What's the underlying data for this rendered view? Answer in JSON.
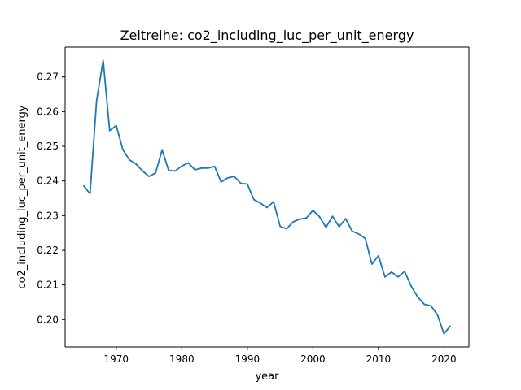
{
  "chart_data": {
    "type": "line",
    "title": "Zeitreihe: co2_including_luc_per_unit_energy",
    "xlabel": "year",
    "ylabel": "co2_including_luc_per_unit_energy",
    "xlim": [
      1962.2,
      2023.8
    ],
    "ylim": [
      0.1921,
      0.2786
    ],
    "grid": false,
    "line_color": "#1f77b4",
    "x_ticks": [
      1970,
      1980,
      1990,
      2000,
      2010,
      2020
    ],
    "x_tick_labels": [
      "1970",
      "1980",
      "1990",
      "2000",
      "2010",
      "2020"
    ],
    "y_ticks": [
      0.2,
      0.21,
      0.22,
      0.23,
      0.24,
      0.25,
      0.26,
      0.27
    ],
    "y_tick_labels": [
      "0.20",
      "0.21",
      "0.22",
      "0.23",
      "0.24",
      "0.25",
      "0.26",
      "0.27"
    ],
    "x": [
      1965,
      1966,
      1967,
      1968,
      1969,
      1970,
      1971,
      1972,
      1973,
      1974,
      1975,
      1976,
      1977,
      1978,
      1979,
      1980,
      1981,
      1982,
      1983,
      1984,
      1985,
      1986,
      1987,
      1988,
      1989,
      1990,
      1991,
      1992,
      1993,
      1994,
      1995,
      1996,
      1997,
      1998,
      1999,
      2000,
      2001,
      2002,
      2003,
      2004,
      2005,
      2006,
      2007,
      2008,
      2009,
      2010,
      2011,
      2012,
      2013,
      2014,
      2015,
      2016,
      2017,
      2018,
      2019,
      2020,
      2021
    ],
    "series": [
      {
        "values": [
          0.2387,
          0.2363,
          0.2631,
          0.2748,
          0.2545,
          0.256,
          0.2491,
          0.2461,
          0.2449,
          0.2429,
          0.2413,
          0.2423,
          0.249,
          0.243,
          0.2429,
          0.2443,
          0.2452,
          0.2432,
          0.2437,
          0.2437,
          0.2442,
          0.2397,
          0.2409,
          0.2413,
          0.2393,
          0.2391,
          0.2346,
          0.2336,
          0.2323,
          0.234,
          0.2269,
          0.2262,
          0.2282,
          0.229,
          0.2293,
          0.2315,
          0.2297,
          0.2266,
          0.2298,
          0.2268,
          0.2291,
          0.2255,
          0.2247,
          0.2234,
          0.216,
          0.2184,
          0.2123,
          0.2137,
          0.2123,
          0.2139,
          0.2096,
          0.2065,
          0.2044,
          0.204,
          0.2014,
          0.1959,
          0.1982
        ]
      }
    ]
  }
}
